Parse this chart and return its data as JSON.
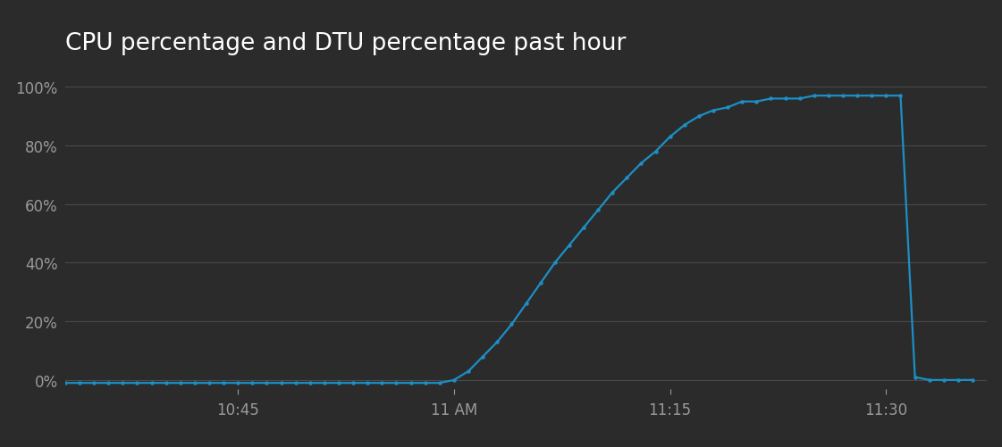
{
  "title": "CPU percentage and DTU percentage past hour",
  "title_fontsize": 19,
  "title_color": "#ffffff",
  "background_color": "#2b2b2b",
  "plot_bg_color": "#2b2b2b",
  "line_color": "#1c8fc5",
  "marker_color": "#1c8fc5",
  "grid_color": "#4a4a4a",
  "tick_color": "#9a9a9a",
  "tick_fontsize": 12,
  "ylim": [
    -3,
    107
  ],
  "yticks": [
    0,
    20,
    40,
    60,
    80,
    100
  ],
  "ytick_labels": [
    "0%",
    "20%",
    "40%",
    "60%",
    "80%",
    "100%"
  ],
  "xtick_labels": [
    "10:45",
    "11 AM",
    "11:15",
    "11:30"
  ],
  "xtick_positions": [
    12,
    27,
    42,
    57
  ],
  "xlim": [
    0,
    64
  ],
  "time_minutes": [
    0,
    1,
    2,
    3,
    4,
    5,
    6,
    7,
    8,
    9,
    10,
    11,
    12,
    13,
    14,
    15,
    16,
    17,
    18,
    19,
    20,
    21,
    22,
    23,
    24,
    25,
    26,
    27,
    28,
    29,
    30,
    31,
    32,
    33,
    34,
    35,
    36,
    37,
    38,
    39,
    40,
    41,
    42,
    43,
    44,
    45,
    46,
    47,
    48,
    49,
    50,
    51,
    52,
    53,
    54,
    55,
    56,
    57,
    58,
    59,
    60,
    61,
    62,
    63
  ],
  "values": [
    -1,
    -1,
    -1,
    -1,
    -1,
    -1,
    -1,
    -1,
    -1,
    -1,
    -1,
    -1,
    -1,
    -1,
    -1,
    -1,
    -1,
    -1,
    -1,
    -1,
    -1,
    -1,
    -1,
    -1,
    -1,
    -1,
    -1,
    0,
    3,
    8,
    13,
    19,
    26,
    33,
    40,
    46,
    52,
    58,
    64,
    69,
    74,
    78,
    83,
    87,
    90,
    92,
    93,
    95,
    95,
    96,
    96,
    96,
    97,
    97,
    97,
    97,
    97,
    97,
    97,
    1,
    0,
    0,
    0,
    0
  ]
}
